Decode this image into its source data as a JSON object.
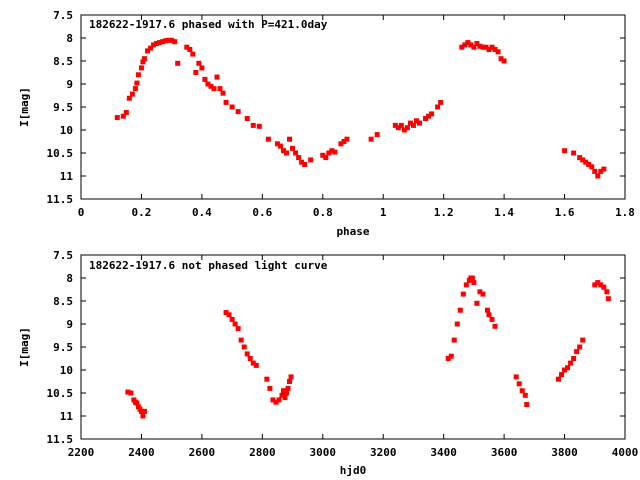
{
  "chart_data": [
    {
      "type": "scatter",
      "title": "182622-1917.6 phased with P=421.0day",
      "xlabel": "phase",
      "ylabel": "I[mag]",
      "xlim": [
        0,
        1.8
      ],
      "ylim": [
        7.5,
        11.5
      ],
      "y_inverted": true,
      "xticks": [
        "0",
        "0.2",
        "0.4",
        "0.6",
        "0.8",
        "1",
        "1.2",
        "1.4",
        "1.6",
        "1.8"
      ],
      "yticks": [
        "7.5",
        "8",
        "8.5",
        "9",
        "9.5",
        "10",
        "10.5",
        "11",
        "11.5"
      ],
      "marker_color": "#ff0000",
      "series": [
        {
          "x": [
            0.12,
            0.14,
            0.15,
            0.16,
            0.17,
            0.18,
            0.185,
            0.19,
            0.2,
            0.205,
            0.21,
            0.22,
            0.23,
            0.24,
            0.25,
            0.26,
            0.27,
            0.28,
            0.29,
            0.3,
            0.31,
            0.32,
            0.35,
            0.36,
            0.37,
            0.38,
            0.39,
            0.4,
            0.41,
            0.42,
            0.43,
            0.44,
            0.45,
            0.46,
            0.47,
            0.48,
            0.5,
            0.52,
            0.55,
            0.57,
            0.59,
            0.62,
            0.65,
            0.66,
            0.67,
            0.68,
            0.69,
            0.7,
            0.71,
            0.72,
            0.73,
            0.74,
            0.76,
            0.8,
            0.81,
            0.82,
            0.83,
            0.84,
            0.86,
            0.87,
            0.88,
            0.96,
            0.98,
            1.04,
            1.05,
            1.06,
            1.07,
            1.08,
            1.09,
            1.1,
            1.11,
            1.12,
            1.14,
            1.15,
            1.16,
            1.18,
            1.19,
            1.26,
            1.27,
            1.28,
            1.29,
            1.3,
            1.31,
            1.32,
            1.33,
            1.34,
            1.35,
            1.36,
            1.37,
            1.38,
            1.39,
            1.4,
            1.6,
            1.63,
            1.65,
            1.66,
            1.67,
            1.68,
            1.69,
            1.7,
            1.71,
            1.72,
            1.73
          ],
          "y": [
            9.73,
            9.7,
            9.62,
            9.31,
            9.22,
            9.1,
            8.98,
            8.8,
            8.65,
            8.52,
            8.45,
            8.28,
            8.22,
            8.15,
            8.12,
            8.1,
            8.08,
            8.06,
            8.05,
            8.05,
            8.08,
            8.55,
            8.2,
            8.25,
            8.35,
            8.75,
            8.55,
            8.65,
            8.9,
            9.0,
            9.05,
            9.1,
            8.85,
            9.1,
            9.2,
            9.4,
            9.5,
            9.6,
            9.75,
            9.9,
            9.92,
            10.2,
            10.3,
            10.35,
            10.45,
            10.5,
            10.2,
            10.4,
            10.5,
            10.6,
            10.7,
            10.75,
            10.65,
            10.55,
            10.6,
            10.5,
            10.45,
            10.48,
            10.3,
            10.25,
            10.2,
            10.2,
            10.1,
            9.9,
            9.95,
            9.9,
            10.0,
            9.95,
            9.85,
            9.9,
            9.8,
            9.85,
            9.75,
            9.7,
            9.65,
            9.5,
            9.4,
            8.2,
            8.15,
            8.1,
            8.15,
            8.2,
            8.12,
            8.18,
            8.2,
            8.2,
            8.25,
            8.2,
            8.25,
            8.3,
            8.45,
            8.5,
            10.45,
            10.5,
            10.6,
            10.65,
            10.7,
            10.75,
            10.8,
            10.9,
            11.0,
            10.9,
            10.85
          ]
        }
      ]
    },
    {
      "type": "scatter",
      "title": "182622-1917.6 not phased light curve",
      "xlabel": "hjd0",
      "ylabel": "I[mag]",
      "xlim": [
        2200,
        4000
      ],
      "ylim": [
        7.5,
        11.5
      ],
      "y_inverted": true,
      "xticks": [
        "2200",
        "2400",
        "2600",
        "2800",
        "3000",
        "3200",
        "3400",
        "3600",
        "3800",
        "4000"
      ],
      "yticks": [
        "7.5",
        "8",
        "8.5",
        "9",
        "9.5",
        "10",
        "10.5",
        "11",
        "11.5"
      ],
      "marker_color": "#ff0000",
      "series": [
        {
          "x": [
            2355,
            2365,
            2375,
            2380,
            2385,
            2390,
            2395,
            2400,
            2405,
            2410,
            2680,
            2690,
            2700,
            2710,
            2720,
            2730,
            2740,
            2750,
            2760,
            2770,
            2780,
            2815,
            2825,
            2835,
            2845,
            2855,
            2865,
            2870,
            2875,
            2880,
            2885,
            2890,
            2895,
            3415,
            3425,
            3435,
            3445,
            3455,
            3465,
            3475,
            3485,
            3490,
            3495,
            3500,
            3510,
            3520,
            3530,
            3545,
            3550,
            3560,
            3570,
            3640,
            3650,
            3660,
            3670,
            3675,
            3780,
            3790,
            3800,
            3810,
            3820,
            3830,
            3840,
            3850,
            3860,
            3900,
            3910,
            3920,
            3930,
            3940,
            3945
          ],
          "y": [
            10.48,
            10.5,
            10.65,
            10.7,
            10.72,
            10.8,
            10.85,
            10.9,
            11.0,
            10.9,
            8.75,
            8.8,
            8.9,
            9.0,
            9.1,
            9.35,
            9.5,
            9.65,
            9.75,
            9.85,
            9.9,
            10.2,
            10.4,
            10.65,
            10.7,
            10.65,
            10.55,
            10.45,
            10.6,
            10.5,
            10.4,
            10.25,
            10.15,
            9.75,
            9.7,
            9.35,
            9.0,
            8.7,
            8.35,
            8.15,
            8.05,
            8.0,
            8.0,
            8.1,
            8.55,
            8.3,
            8.35,
            8.7,
            8.8,
            8.9,
            9.05,
            10.15,
            10.3,
            10.45,
            10.55,
            10.75,
            10.2,
            10.1,
            10.0,
            9.95,
            9.85,
            9.75,
            9.6,
            9.5,
            9.35,
            8.15,
            8.1,
            8.15,
            8.2,
            8.3,
            8.45
          ]
        }
      ]
    }
  ]
}
